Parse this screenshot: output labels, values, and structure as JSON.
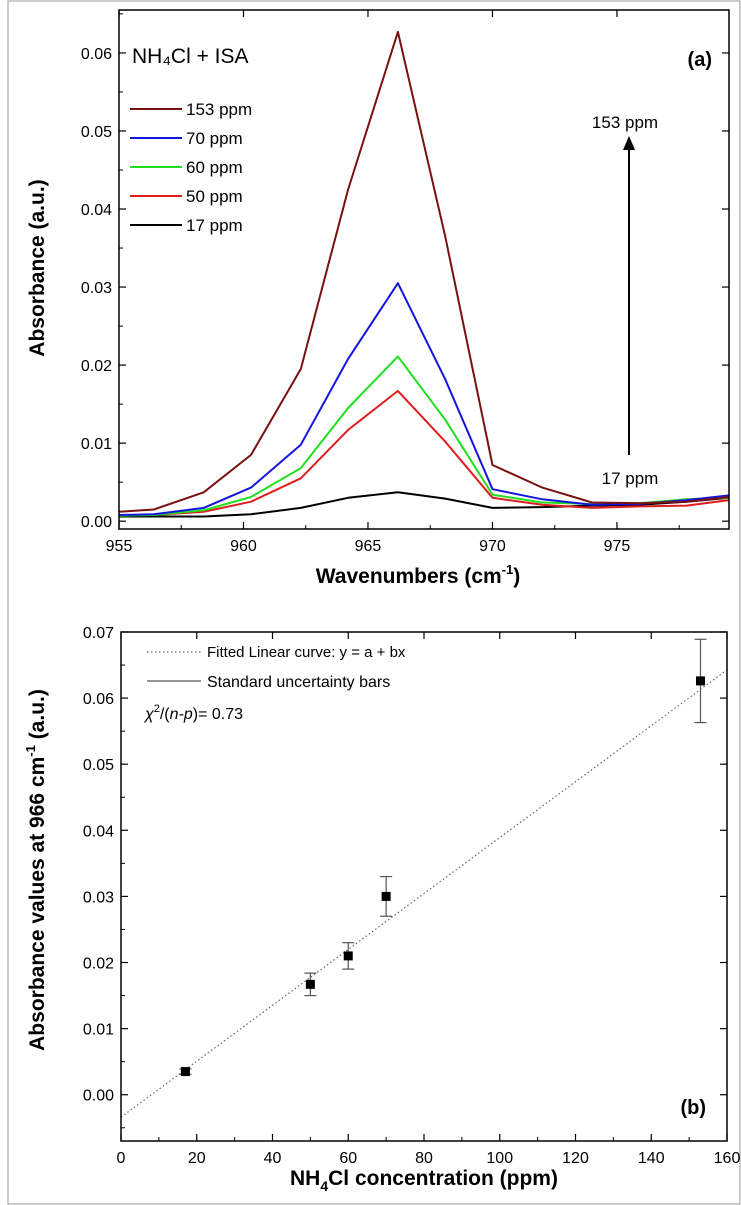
{
  "chart_data": [
    {
      "panel": "(a)",
      "type": "line",
      "title": "NH₄Cl + ISA",
      "xlabel_base": "Wavenumbers (cm",
      "xlabel_sup": "-1",
      "xlabel_close": ")",
      "ylabel": "Absorbance (a.u.)",
      "xlim": [
        955,
        979.5
      ],
      "ylim": [
        -0.001,
        0.0655
      ],
      "xticks": [
        955,
        960,
        965,
        970,
        975
      ],
      "yticks": [
        0.0,
        0.01,
        0.02,
        0.03,
        0.04,
        0.05,
        0.06
      ],
      "ytick_labels": [
        "0.00",
        "0.01",
        "0.02",
        "0.03",
        "0.04",
        "0.05",
        "0.06"
      ],
      "legend_position": "upper-left",
      "x": [
        955.0,
        956.4,
        958.4,
        960.3,
        962.3,
        964.2,
        966.2,
        968.1,
        970.0,
        972.0,
        974.0,
        975.9,
        977.8,
        979.5
      ],
      "series": [
        {
          "name": "153 ppm",
          "color": "#7b1010",
          "values": [
            0.0012,
            0.0015,
            0.0037,
            0.0085,
            0.0195,
            0.0425,
            0.0627,
            0.0365,
            0.0072,
            0.0043,
            0.0024,
            0.0023,
            0.0025,
            0.0031
          ]
        },
        {
          "name": "70 ppm",
          "color": "#1515e0",
          "values": [
            0.0008,
            0.0009,
            0.0017,
            0.0043,
            0.0098,
            0.0208,
            0.0305,
            0.0182,
            0.0041,
            0.0028,
            0.0021,
            0.0022,
            0.0027,
            0.0033
          ]
        },
        {
          "name": "60 ppm",
          "color": "#1fe01f",
          "values": [
            0.0007,
            0.0008,
            0.0014,
            0.0031,
            0.0068,
            0.0145,
            0.0211,
            0.013,
            0.0034,
            0.0024,
            0.0022,
            0.0023,
            0.0028,
            0.003
          ]
        },
        {
          "name": "50 ppm",
          "color": "#e01d1d",
          "values": [
            0.0008,
            0.0008,
            0.0012,
            0.0025,
            0.0055,
            0.0117,
            0.0167,
            0.0102,
            0.003,
            0.0021,
            0.0017,
            0.0019,
            0.002,
            0.0027
          ]
        },
        {
          "name": "17 ppm",
          "color": "#000000",
          "values": [
            0.0006,
            0.0006,
            0.0006,
            0.0009,
            0.0017,
            0.003,
            0.0037,
            0.0029,
            0.0017,
            0.0018,
            0.002,
            0.0021,
            0.0025,
            0.003
          ]
        }
      ],
      "annotations": [
        "153 ppm",
        "17 ppm"
      ]
    },
    {
      "panel": "(b)",
      "type": "scatter",
      "xlabel_base": "NH",
      "xlabel_sub": "4",
      "xlabel_rest": "Cl concentration (ppm)",
      "ylabel_base": "Absorbance values at 966 cm",
      "ylabel_sup": "-1",
      "ylabel_rest": " (a.u.)",
      "xlim": [
        0,
        160
      ],
      "ylim": [
        -0.007,
        0.07
      ],
      "xticks": [
        0,
        20,
        40,
        60,
        80,
        100,
        120,
        140,
        160
      ],
      "yticks": [
        0.0,
        0.01,
        0.02,
        0.03,
        0.04,
        0.05,
        0.06,
        0.07
      ],
      "ytick_labels": [
        "0.00",
        "0.01",
        "0.02",
        "0.03",
        "0.04",
        "0.05",
        "0.06",
        "0.07"
      ],
      "legend_position": "upper-left",
      "points": {
        "x": [
          17,
          50,
          60,
          70,
          153
        ],
        "y": [
          0.0035,
          0.0167,
          0.021,
          0.03,
          0.0626
        ],
        "err": [
          0.0004,
          0.0017,
          0.002,
          0.003,
          0.0063
        ]
      },
      "fit": {
        "a": -0.0034,
        "b": 0.000423
      },
      "legend": [
        "Fitted Linear curve: y = a + bx",
        "Standard uncertainty bars"
      ],
      "stat_chi": "χ",
      "stat_sup": "2",
      "stat_mid": "/(",
      "stat_italic": "n-p",
      "stat_rest": ")= 0.73"
    }
  ]
}
